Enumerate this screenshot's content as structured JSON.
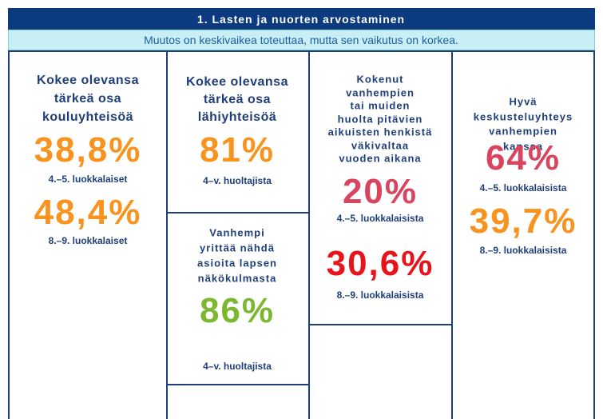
{
  "header": {
    "title": "1. Lasten ja nuorten arvostaminen",
    "subtitle": "Muutos on keskivaikea toteuttaa, mutta sen vaikutus on korkea."
  },
  "panels": [
    {
      "title": [
        "Kokee olevansa",
        "tärkeä osa",
        "kouluyhteisöä"
      ],
      "stats": [
        {
          "value": "38,8%",
          "label": "4.–5. luokkalaiset",
          "color": "#f7931e"
        },
        {
          "value": "48,4%",
          "label": "8.–9. luokkalaiset",
          "color": "#f7931e"
        }
      ]
    },
    {
      "title": [
        "Kokee olevansa",
        "tärkeä osa",
        "lähiyhteisöä"
      ],
      "stats": [
        {
          "value": "81%",
          "label": "4–v. huoltajista",
          "color": "#f7931e"
        }
      ]
    },
    {
      "title": [
        "Vanhempi",
        "yrittää nähdä",
        "asioita lapsen",
        "näkökulmasta"
      ],
      "stats": [
        {
          "value": "86%",
          "label": "4–v. huoltajista",
          "color": "#7cb82f"
        }
      ]
    },
    {
      "title": [
        "Kokenut",
        "vanhempien",
        "tai muiden",
        "huolta pitävien",
        "aikuisten henkistä",
        "väkivaltaa",
        "vuoden aikana"
      ],
      "stats": [
        {
          "value": "20%",
          "label": "4.–5. luokkalaisista",
          "color": "#d9455f"
        },
        {
          "value": "30,6%",
          "label": "8.–9. luokkalaisista",
          "color": "#e8141b"
        }
      ]
    },
    {
      "title": [
        "Hyvä",
        "keskusteluyhteys",
        "vanhempien",
        "kanssa"
      ],
      "stats": [
        {
          "value": "64%",
          "label": "4.–5. luokkalaisista",
          "color": "#d9455f"
        },
        {
          "value": "39,7%",
          "label": "8.–9. luokkalaisista",
          "color": "#f7931e"
        }
      ]
    }
  ]
}
